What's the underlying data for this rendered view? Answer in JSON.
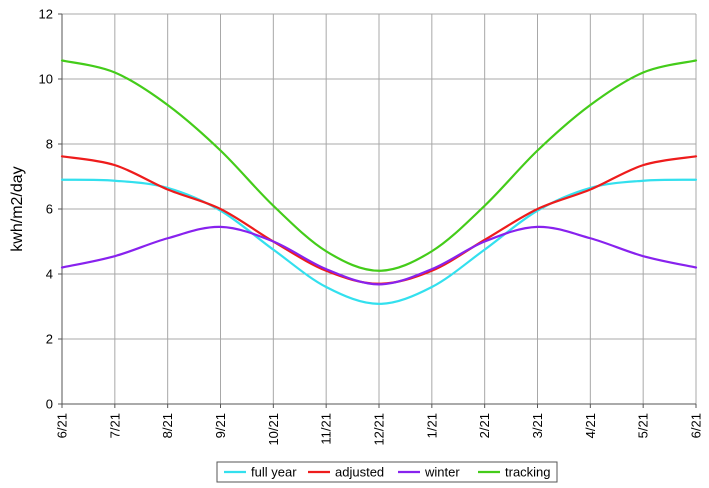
{
  "chart_data": {
    "type": "line",
    "title": "",
    "xlabel": "",
    "ylabel": "kwh/m2/day",
    "x_categories": [
      "6/21",
      "7/21",
      "8/21",
      "9/21",
      "10/21",
      "11/21",
      "12/21",
      "1/21",
      "2/21",
      "3/21",
      "4/21",
      "5/21",
      "6/21"
    ],
    "ylim": [
      0,
      12
    ],
    "yticks": [
      0,
      2,
      4,
      6,
      8,
      10,
      12
    ],
    "grid": true,
    "legend_position": "bottom",
    "series": [
      {
        "name": "full year",
        "color": "#33e0ee",
        "values": [
          6.9,
          6.87,
          6.65,
          5.95,
          4.75,
          3.6,
          3.08,
          3.6,
          4.75,
          5.95,
          6.65,
          6.87,
          6.9
        ]
      },
      {
        "name": "adjusted",
        "color": "#ee1c1c",
        "values": [
          7.62,
          7.35,
          6.6,
          6.0,
          5.0,
          4.1,
          3.7,
          4.1,
          5.05,
          6.0,
          6.6,
          7.35,
          7.62
        ]
      },
      {
        "name": "winter",
        "color": "#8822ee",
        "values": [
          4.2,
          4.55,
          5.1,
          5.45,
          5.0,
          4.15,
          3.68,
          4.15,
          5.0,
          5.45,
          5.1,
          4.55,
          4.2
        ]
      },
      {
        "name": "tracking",
        "color": "#44cc1a",
        "values": [
          10.57,
          10.2,
          9.2,
          7.8,
          6.1,
          4.7,
          4.1,
          4.7,
          6.1,
          7.8,
          9.2,
          10.2,
          10.57
        ]
      }
    ]
  }
}
